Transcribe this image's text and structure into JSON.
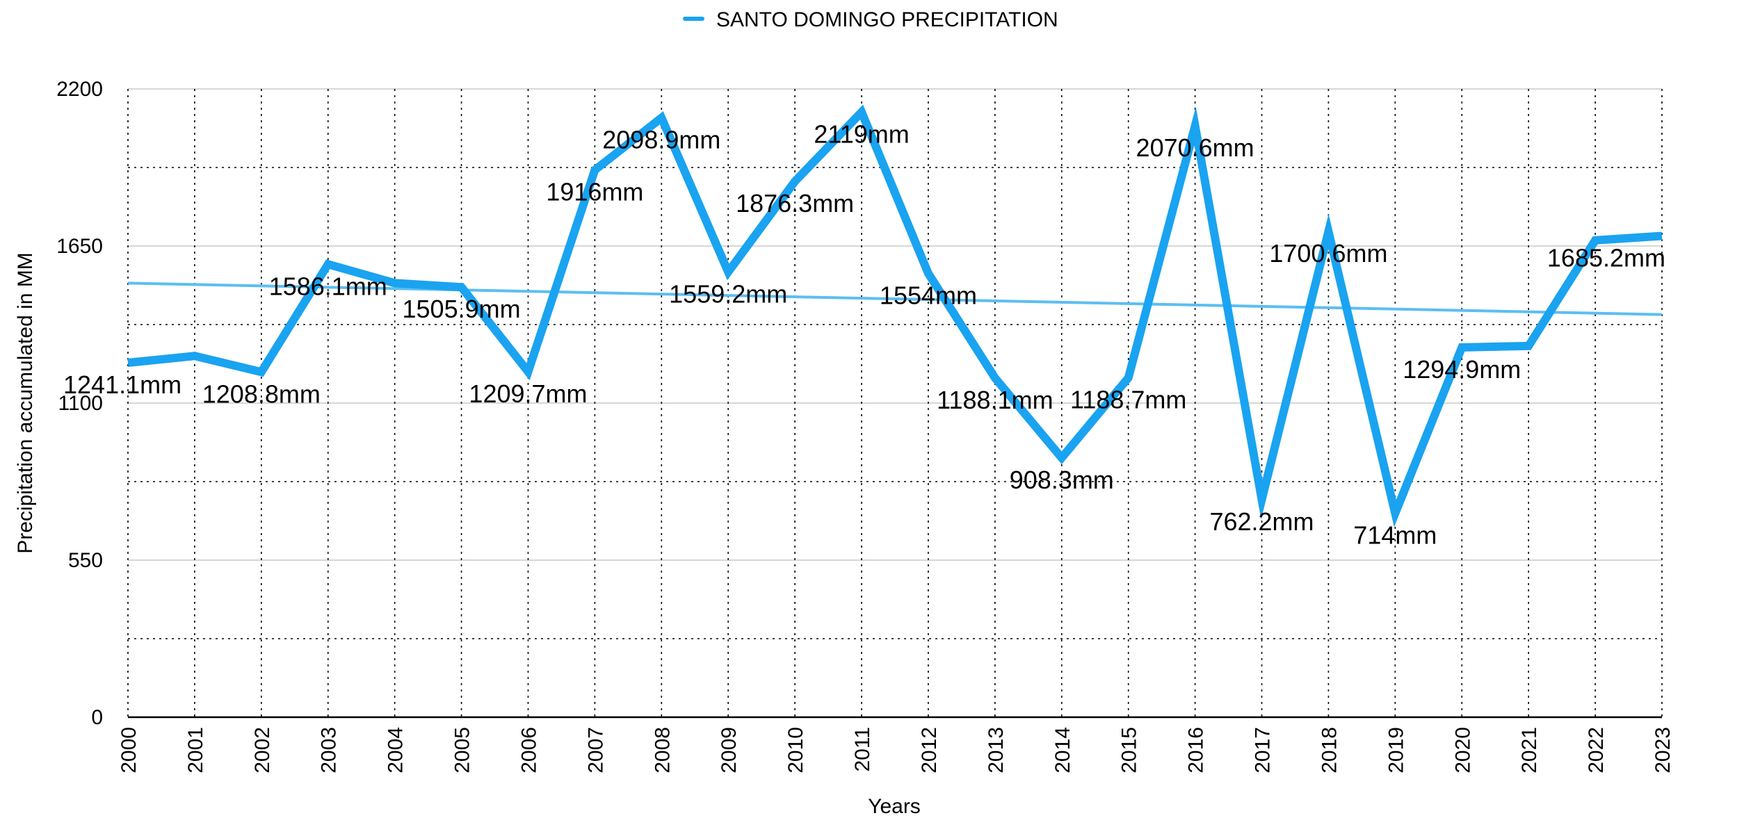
{
  "colors": {
    "series": "#1AA3F0",
    "trend": "#5BBEF2",
    "grid": "#000000",
    "text": "#000000"
  },
  "chart_data": {
    "type": "line",
    "title": "",
    "legend": {
      "label": "SANTO DOMINGO PRECIPITATION",
      "position": "top-center"
    },
    "xlabel": "Years",
    "ylabel": "Precipitation accumulated in MM",
    "ylim": [
      0,
      2200
    ],
    "yticks": [
      0,
      550,
      1100,
      1650,
      2200
    ],
    "ytick_labels": [
      "0",
      "550",
      "1100",
      "1650",
      "2200"
    ],
    "grid": true,
    "categories": [
      "2000",
      "2001",
      "2002",
      "2003",
      "2004",
      "2005",
      "2006",
      "2007",
      "2008",
      "2009",
      "2010",
      "2011",
      "2012",
      "2013",
      "2014",
      "2015",
      "2016",
      "2017",
      "2018",
      "2019",
      "2020",
      "2021",
      "2022",
      "2023"
    ],
    "series": [
      {
        "name": "SANTO DOMINGO PRECIPITATION",
        "values": [
          1241.1,
          1265,
          1208.8,
          1586.1,
          1520,
          1505.9,
          1209.7,
          1916,
          2098.9,
          1559.2,
          1876.3,
          2119,
          1554,
          1188.1,
          908.3,
          1188.7,
          2070.6,
          762.2,
          1700.6,
          714,
          1294.9,
          1300,
          1670,
          1685.2
        ]
      }
    ],
    "data_labels": [
      {
        "index": 0,
        "text": "1241.1mm"
      },
      {
        "index": 2,
        "text": "1208.8mm"
      },
      {
        "index": 3,
        "text": "1586.1mm"
      },
      {
        "index": 5,
        "text": "1505.9mm"
      },
      {
        "index": 6,
        "text": "1209.7mm"
      },
      {
        "index": 7,
        "text": "1916mm"
      },
      {
        "index": 8,
        "text": "2098.9mm"
      },
      {
        "index": 9,
        "text": "1559.2mm"
      },
      {
        "index": 10,
        "text": "1876.3mm"
      },
      {
        "index": 11,
        "text": "2119mm"
      },
      {
        "index": 12,
        "text": "1554mm"
      },
      {
        "index": 13,
        "text": "1188.1mm"
      },
      {
        "index": 14,
        "text": "908.3mm"
      },
      {
        "index": 15,
        "text": "1188.7mm"
      },
      {
        "index": 16,
        "text": "2070.6mm"
      },
      {
        "index": 17,
        "text": "762.2mm"
      },
      {
        "index": 18,
        "text": "1700.6mm"
      },
      {
        "index": 19,
        "text": "714mm"
      },
      {
        "index": 20,
        "text": "1294.9mm"
      },
      {
        "index": 23,
        "text": "1685.2mm"
      }
    ],
    "trendline": {
      "type": "linear",
      "start_value": 1520,
      "end_value": 1410
    }
  }
}
